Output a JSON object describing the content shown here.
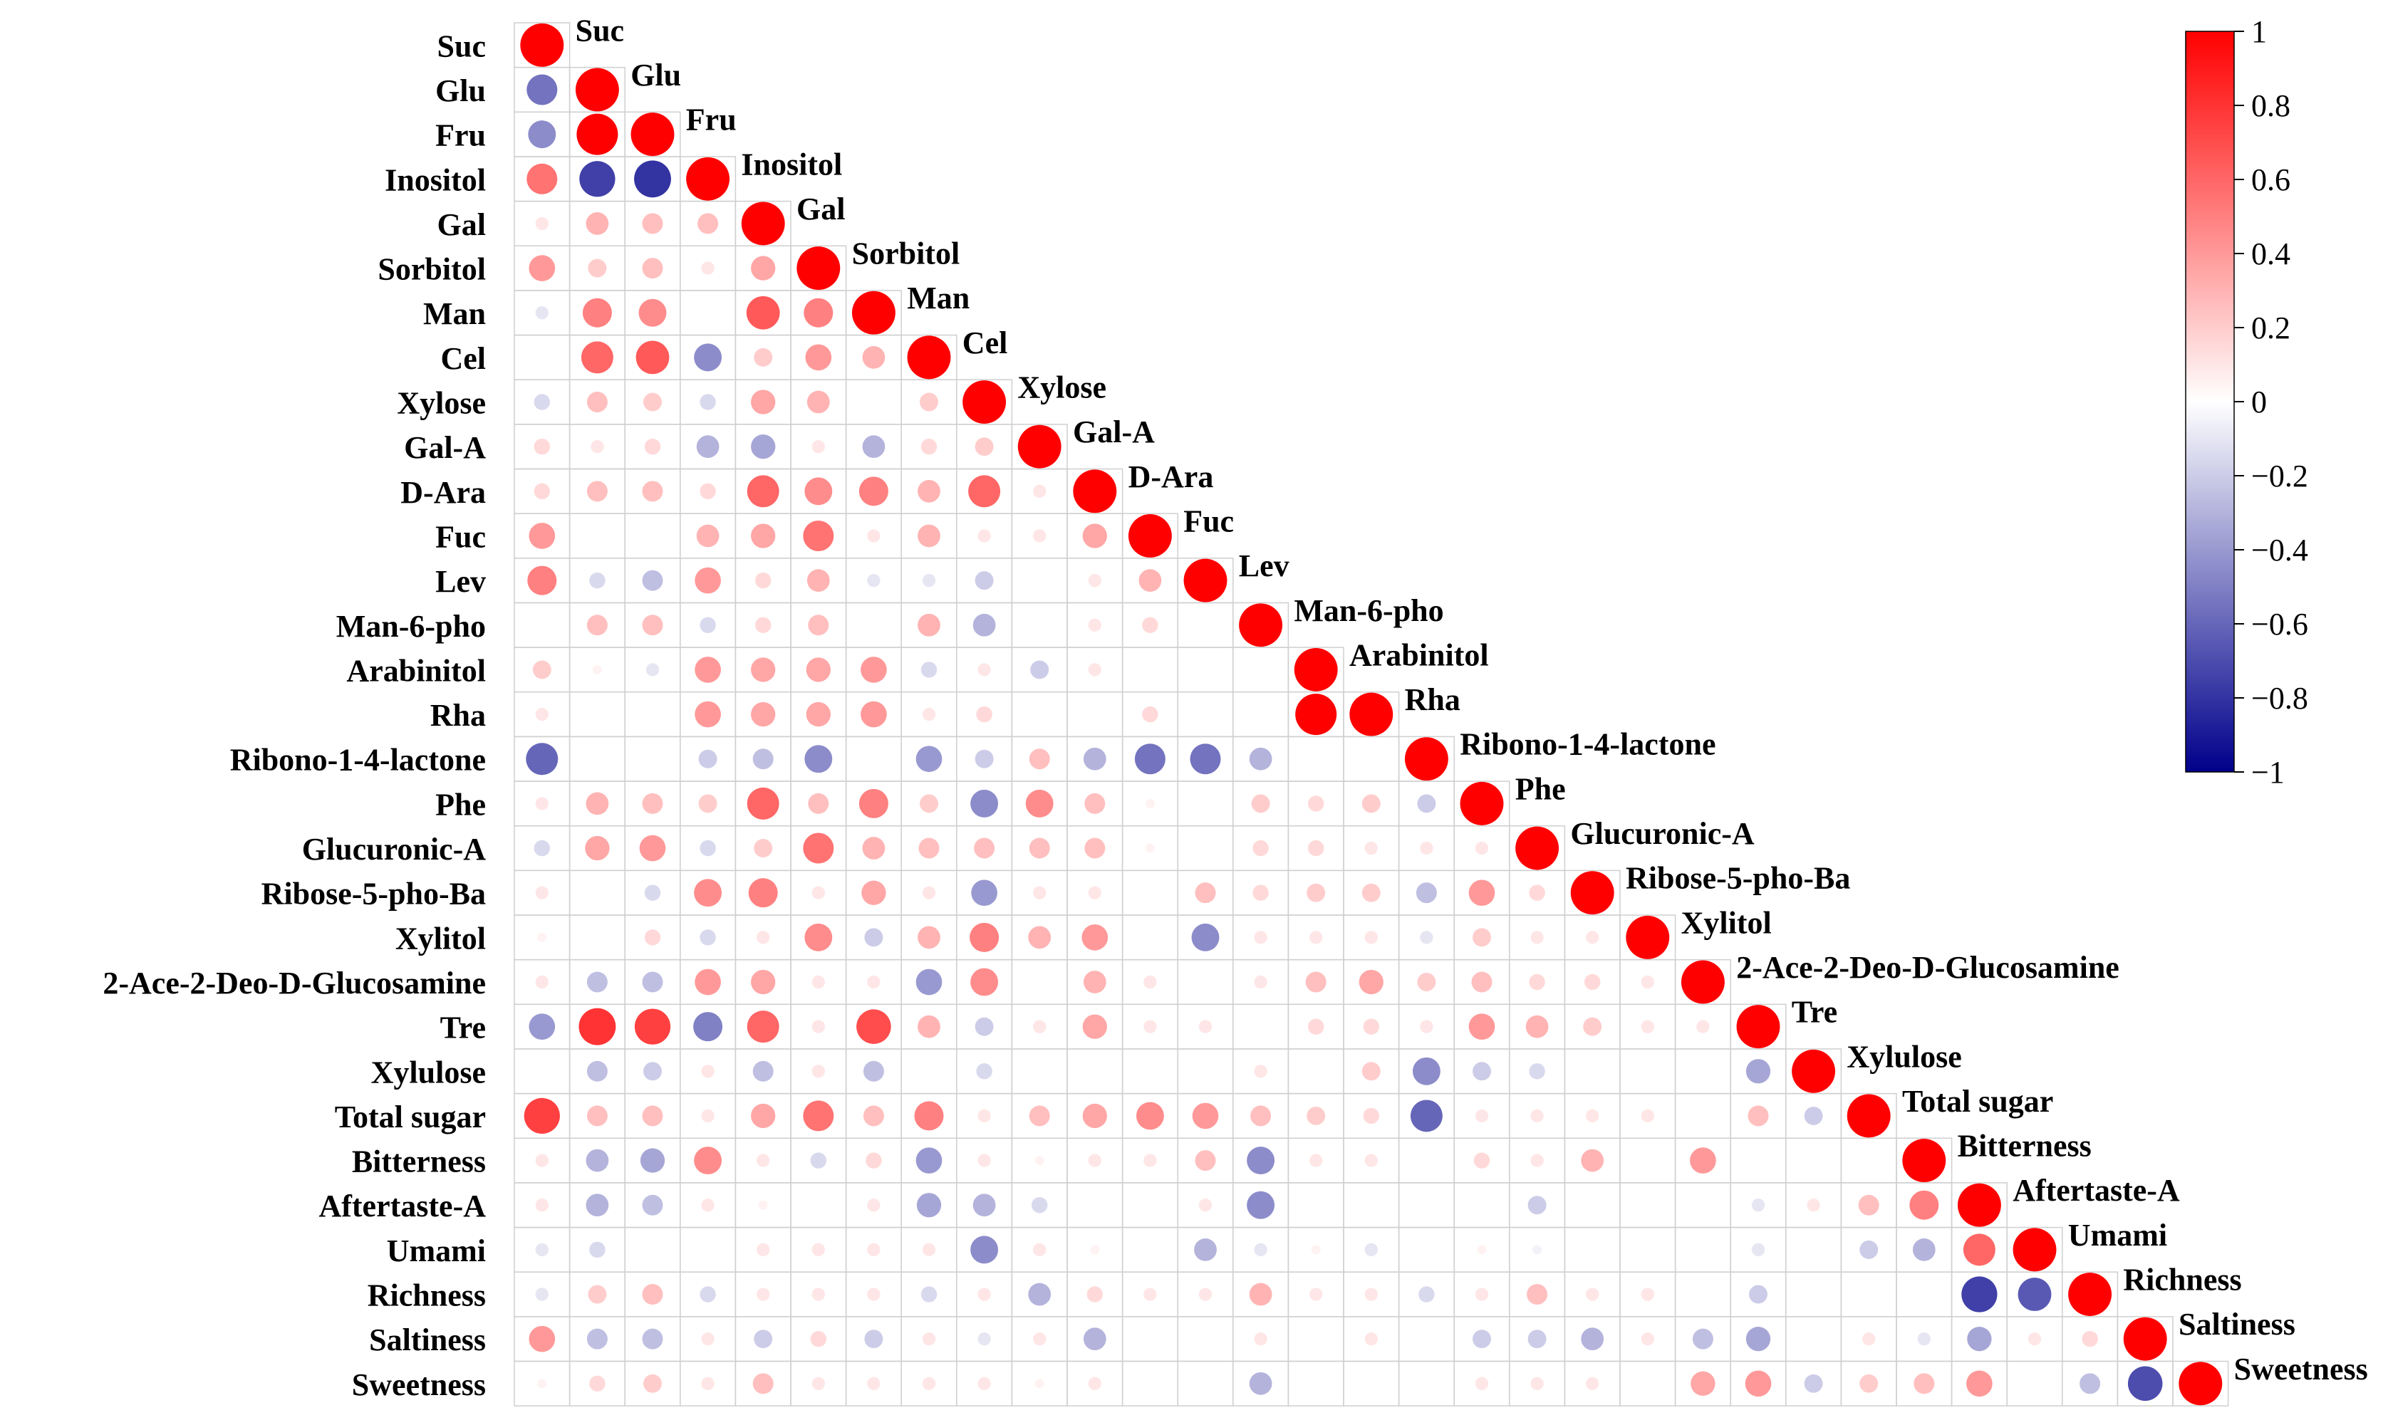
{
  "chart_data": {
    "type": "heatmap",
    "subtype": "lower-triangular-correlation-circles",
    "title": "",
    "variables": [
      "Suc",
      "Glu",
      "Fru",
      "Inositol",
      "Gal",
      "Sorbitol",
      "Man",
      "Cel",
      "Xylose",
      "Gal-A",
      "D-Ara",
      "Fuc",
      "Lev",
      "Man-6-pho",
      "Arabinitol",
      "Rha",
      "Ribono-1-4-lactone",
      "Phe",
      "Glucuronic-A",
      "Ribose-5-pho-Ba",
      "Xylitol",
      "2-Ace-2-Deo-D-Glucosamine",
      "Tre",
      "Xylulose",
      "Total sugar",
      "Bitterness",
      "Aftertaste-A",
      "Umami",
      "Richness",
      "Saltiness",
      "Sweetness"
    ],
    "matrix": [
      [
        1
      ],
      [
        -0.55,
        1
      ],
      [
        -0.45,
        1,
        1
      ],
      [
        0.55,
        -0.75,
        -0.8,
        1
      ],
      [
        0.1,
        0.3,
        0.25,
        0.25,
        1
      ],
      [
        0.4,
        0.2,
        0.25,
        0.1,
        0.35,
        1
      ],
      [
        -0.1,
        0.5,
        0.45,
        0,
        0.65,
        0.5,
        1
      ],
      [
        0,
        0.6,
        0.65,
        -0.45,
        0.2,
        0.4,
        0.3,
        1
      ],
      [
        -0.15,
        0.25,
        0.2,
        -0.15,
        0.35,
        0.3,
        0,
        0.2,
        1
      ],
      [
        0.15,
        0.1,
        0.15,
        -0.3,
        -0.35,
        0.1,
        -0.3,
        0.15,
        0.2,
        1
      ],
      [
        0.15,
        0.25,
        0.25,
        0.15,
        0.6,
        0.45,
        0.5,
        0.3,
        0.6,
        0.1,
        1
      ],
      [
        0.4,
        0,
        0,
        0.3,
        0.35,
        0.55,
        0.1,
        0.3,
        0.1,
        0.1,
        0.35,
        1
      ],
      [
        0.5,
        -0.15,
        -0.25,
        0.4,
        0.15,
        0.3,
        -0.1,
        -0.1,
        -0.2,
        0,
        0.1,
        0.3,
        1
      ],
      [
        0,
        0.25,
        0.25,
        -0.15,
        0.15,
        0.25,
        0,
        0.3,
        -0.3,
        0,
        0.1,
        0.15,
        0,
        1
      ],
      [
        0.2,
        0.05,
        -0.1,
        0.4,
        0.35,
        0.35,
        0.4,
        -0.15,
        0.1,
        -0.2,
        0.1,
        0,
        0,
        0,
        1
      ],
      [
        0.1,
        0,
        0,
        0.4,
        0.35,
        0.35,
        0.4,
        0.1,
        0.15,
        0,
        0,
        0.15,
        0,
        0,
        1,
        1
      ],
      [
        -0.6,
        0,
        0,
        -0.2,
        -0.25,
        -0.45,
        0,
        -0.4,
        -0.2,
        0.25,
        -0.3,
        -0.55,
        -0.55,
        -0.3,
        0,
        0,
        1
      ],
      [
        0.1,
        0.3,
        0.25,
        0.2,
        0.6,
        0.25,
        0.5,
        0.2,
        -0.45,
        0.45,
        0.25,
        0.05,
        0,
        0.2,
        0.15,
        0.2,
        -0.2,
        1
      ],
      [
        -0.15,
        0.35,
        0.4,
        -0.15,
        0.2,
        0.55,
        0.3,
        0.25,
        0.25,
        0.25,
        0.25,
        0.05,
        0,
        0.15,
        0.15,
        0.1,
        0.1,
        0.1,
        1
      ],
      [
        0.1,
        0,
        -0.15,
        0.45,
        0.5,
        0.1,
        0.35,
        0.1,
        -0.4,
        0.1,
        0.1,
        0,
        0.25,
        0.15,
        0.2,
        0.2,
        -0.25,
        0.4,
        0.15,
        1
      ],
      [
        0.05,
        0,
        0.15,
        -0.15,
        0.1,
        0.45,
        -0.2,
        0.3,
        0.5,
        0.3,
        0.4,
        0,
        -0.45,
        0.1,
        0.1,
        0.1,
        -0.1,
        0.2,
        0.1,
        0.1,
        1
      ],
      [
        0.1,
        -0.25,
        -0.25,
        0.4,
        0.35,
        0.1,
        0.1,
        -0.4,
        0.45,
        0,
        0.3,
        0.1,
        0,
        0.1,
        0.25,
        0.35,
        0.2,
        0.25,
        0.15,
        0.15,
        0.1,
        1
      ],
      [
        -0.4,
        0.8,
        0.75,
        -0.5,
        0.6,
        0.1,
        0.7,
        0.3,
        -0.2,
        0.1,
        0.35,
        0.1,
        0.1,
        0,
        0.15,
        0.15,
        0.1,
        0.4,
        0.3,
        0.2,
        0.1,
        0.1,
        1
      ],
      [
        0,
        -0.25,
        -0.2,
        0.1,
        -0.25,
        0.1,
        -0.25,
        0,
        -0.15,
        0,
        0,
        0,
        0,
        0.1,
        0,
        0.2,
        -0.45,
        -0.2,
        -0.15,
        0,
        0,
        0,
        -0.35,
        1
      ],
      [
        0.75,
        0.25,
        0.25,
        0.1,
        0.35,
        0.55,
        0.25,
        0.5,
        0.1,
        0.25,
        0.35,
        0.45,
        0.4,
        0.25,
        0.2,
        0.15,
        -0.6,
        0.1,
        0.1,
        0.1,
        0.1,
        0,
        0.25,
        -0.2,
        1
      ],
      [
        0.1,
        -0.3,
        -0.35,
        0.45,
        0.1,
        -0.15,
        0.15,
        -0.4,
        0.1,
        0.05,
        0.1,
        0.1,
        0.25,
        -0.45,
        0.1,
        0.1,
        0,
        0.15,
        0.1,
        0.3,
        0,
        0.4,
        0,
        0,
        0,
        1
      ],
      [
        0.1,
        -0.3,
        -0.25,
        0.1,
        0.05,
        0,
        0.1,
        -0.35,
        -0.3,
        -0.15,
        0,
        0,
        0.1,
        -0.45,
        0,
        0,
        0,
        0,
        -0.2,
        0,
        0,
        0,
        -0.1,
        0.1,
        0.25,
        0.5,
        1
      ],
      [
        -0.1,
        -0.15,
        0,
        0,
        0.1,
        0.1,
        0.1,
        0.1,
        -0.45,
        0.1,
        0.05,
        0,
        -0.3,
        -0.1,
        0.05,
        -0.1,
        0,
        0.05,
        -0.05,
        0,
        0,
        0,
        -0.1,
        0,
        -0.2,
        -0.3,
        0.6,
        1
      ],
      [
        -0.1,
        0.2,
        0.25,
        -0.15,
        0.1,
        0.1,
        0.1,
        -0.15,
        0.1,
        -0.3,
        0.15,
        0.1,
        0.1,
        0.3,
        0.1,
        0.1,
        -0.15,
        0.1,
        0.25,
        0.1,
        0.1,
        0,
        -0.2,
        0,
        0,
        0,
        -0.75,
        -0.65,
        1
      ],
      [
        0.4,
        -0.25,
        -0.25,
        0.1,
        -0.2,
        0.15,
        -0.2,
        0.1,
        -0.1,
        0.1,
        -0.3,
        0,
        0,
        0.1,
        0,
        0.1,
        0,
        -0.2,
        -0.2,
        -0.3,
        0.1,
        -0.25,
        -0.35,
        0,
        0.1,
        -0.1,
        -0.35,
        0.1,
        0.15,
        1
      ],
      [
        0.05,
        0.15,
        0.2,
        0.1,
        0.25,
        0.1,
        0.1,
        0.1,
        0.1,
        0.05,
        0.1,
        0,
        0,
        -0.3,
        0,
        0,
        0,
        0.1,
        0.1,
        0.1,
        0,
        0.35,
        0.4,
        -0.2,
        0.2,
        0.25,
        0.4,
        0,
        -0.25,
        -0.7,
        1
      ]
    ],
    "colorbar": {
      "range": [
        -1,
        1
      ],
      "tick_values": [
        1,
        0.8,
        0.6,
        0.4,
        0.2,
        0,
        -0.2,
        -0.4,
        -0.6,
        -0.8,
        -1
      ],
      "tick_labels": [
        "1",
        "0.8",
        "0.6",
        "0.4",
        "0.2",
        "0",
        "−0.2",
        "−0.4",
        "−0.6",
        "−0.8",
        "−1"
      ],
      "colors": {
        "high": "#ff0000",
        "mid": "#ffffff",
        "low": "#00008b"
      }
    },
    "legend_placement": "right",
    "grid": true
  }
}
